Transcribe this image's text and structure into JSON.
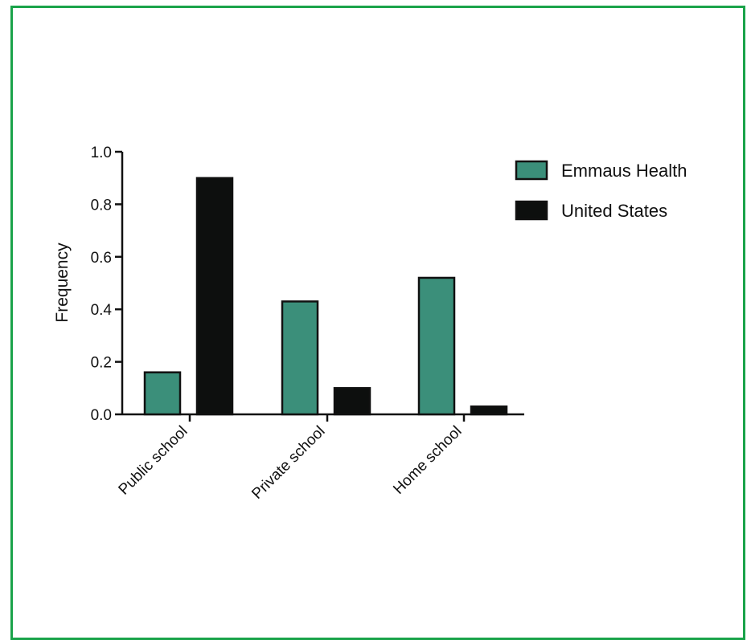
{
  "chart_data": {
    "type": "bar",
    "ylabel": "Frequency",
    "ylim": [
      0,
      1.0
    ],
    "yticks": [
      "0.0",
      "0.2",
      "0.4",
      "0.6",
      "0.8",
      "1.0"
    ],
    "categories": [
      "Public school",
      "Private school",
      "Home school"
    ],
    "series": [
      {
        "name": "Emmaus Health",
        "values": [
          0.16,
          0.43,
          0.52
        ],
        "color": "#3b8f7a"
      },
      {
        "name": "United States",
        "values": [
          0.9,
          0.1,
          0.03
        ],
        "color": "#0d0f0e"
      }
    ],
    "legend": "top-right",
    "grid": false
  }
}
